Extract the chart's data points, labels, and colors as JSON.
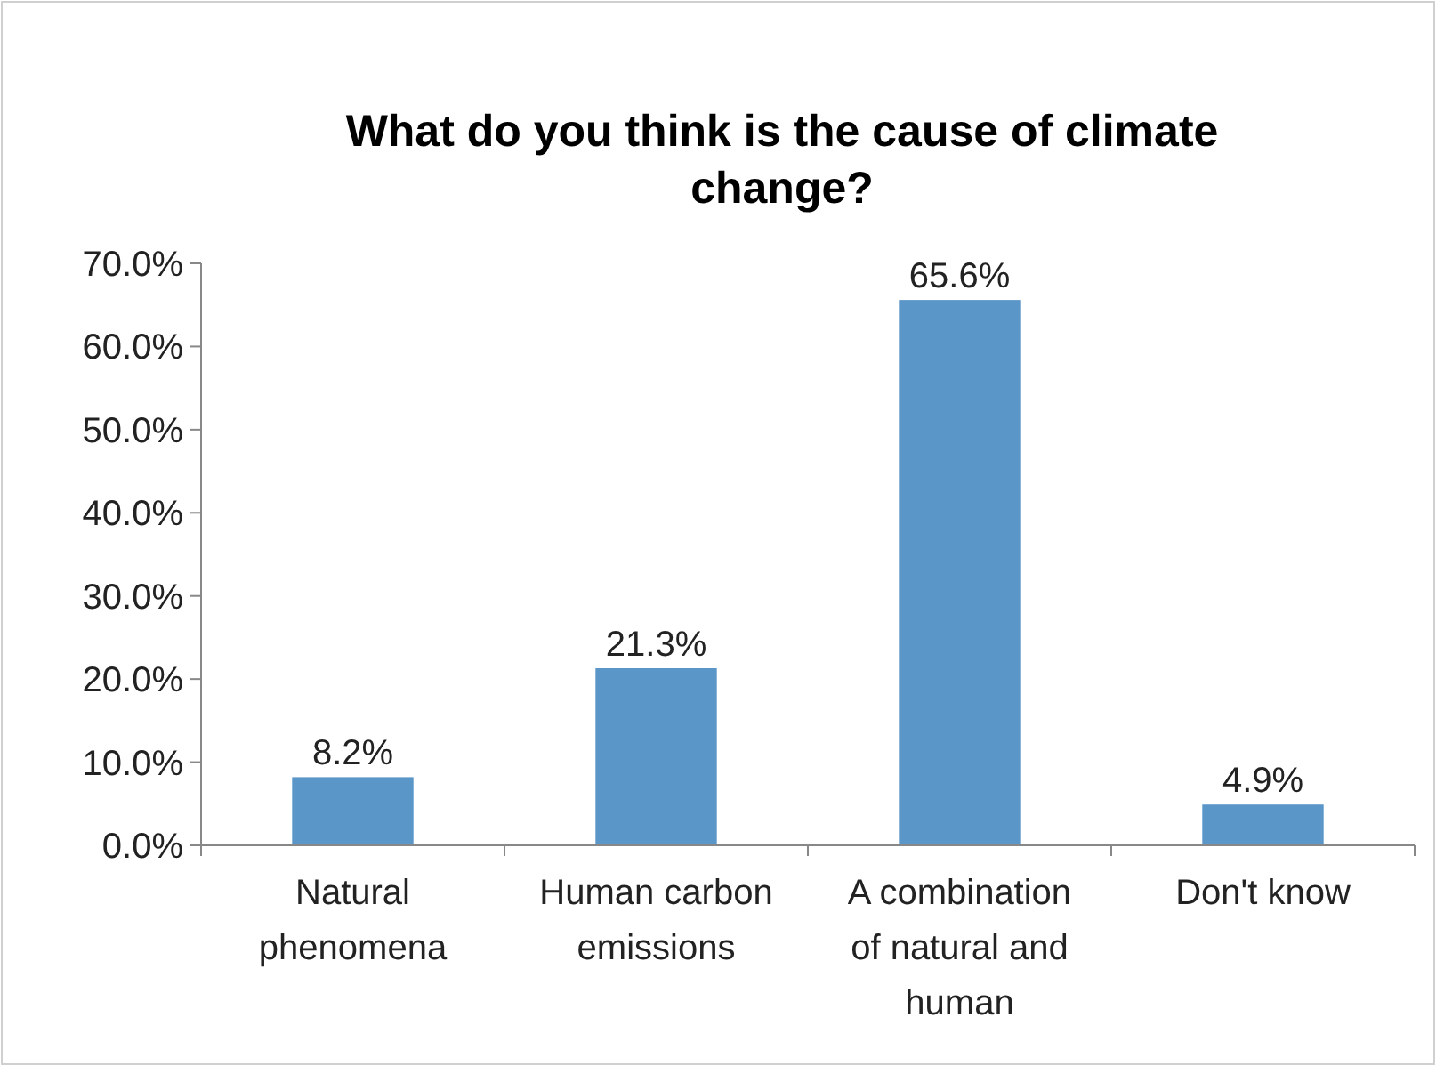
{
  "chart_data": {
    "type": "bar",
    "title": "What do you think is the cause of climate change?",
    "categories": [
      "Natural phenomena",
      "Human carbon emissions",
      "A combination of natural and human",
      "Don't know"
    ],
    "values": [
      8.2,
      21.3,
      65.6,
      4.9
    ],
    "color": "#5b96c8",
    "value_labels": [
      "8.2%",
      "21.3%",
      "65.6%",
      "4.9%"
    ],
    "ylim": [
      0,
      70
    ],
    "yticks": [
      {
        "value": 0,
        "label": "0.0%"
      },
      {
        "value": 10,
        "label": "10.0%"
      },
      {
        "value": 20,
        "label": "20.0%"
      },
      {
        "value": 30,
        "label": "30.0%"
      },
      {
        "value": 40,
        "label": "40.0%"
      },
      {
        "value": 50,
        "label": "50.0%"
      },
      {
        "value": 60,
        "label": "60.0%"
      },
      {
        "value": 70,
        "label": "70.0%"
      }
    ],
    "grid": false
  }
}
